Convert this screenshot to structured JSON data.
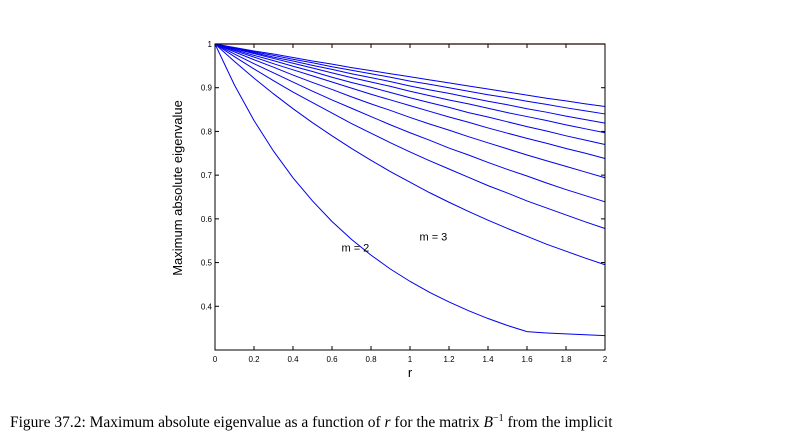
{
  "chart_data": {
    "type": "line",
    "title": "",
    "xlabel": "r",
    "ylabel": "Maximum absolute eigenvalue",
    "xlim": [
      0,
      2
    ],
    "ylim": [
      0.3,
      1
    ],
    "x_ticks": [
      0,
      0.2,
      0.4,
      0.6,
      0.8,
      1,
      1.2,
      1.4,
      1.6,
      1.8,
      2
    ],
    "x_tick_labels": [
      "0",
      "0.2",
      "0.4",
      "0.6",
      "0.8",
      "1",
      "1.2",
      "1.4",
      "1.6",
      "1.8",
      "2"
    ],
    "y_ticks": [
      0.4,
      0.5,
      0.6,
      0.7,
      0.8,
      0.9,
      1
    ],
    "y_tick_labels": [
      "0.4",
      "0.5",
      "0.6",
      "0.7",
      "0.8",
      "0.9",
      "1"
    ],
    "grid": false,
    "x": [
      0,
      0.1,
      0.2,
      0.3,
      0.4,
      0.5,
      0.6,
      0.7,
      0.8,
      0.9,
      1,
      1.1,
      1.2,
      1.3,
      1.4,
      1.5,
      1.6,
      1.7,
      1.8,
      1.9,
      2
    ],
    "series": [
      {
        "name": "",
        "color": "#cc0000",
        "values": [
          1,
          1,
          1,
          1,
          1,
          1,
          1,
          1,
          1,
          1,
          1,
          1,
          1,
          1,
          1,
          1,
          1,
          1,
          1,
          1,
          1
        ]
      },
      {
        "name": "",
        "color": "#0000ee",
        "values": [
          1,
          0.906,
          0.825,
          0.755,
          0.694,
          0.641,
          0.594,
          0.553,
          0.517,
          0.485,
          0.457,
          0.432,
          0.41,
          0.39,
          0.372,
          0.356,
          0.342,
          0.339,
          0.337,
          0.335,
          0.333
        ]
      },
      {
        "name": "",
        "color": "#0000ee",
        "values": [
          1,
          0.96,
          0.922,
          0.886,
          0.852,
          0.82,
          0.79,
          0.761,
          0.734,
          0.708,
          0.684,
          0.66,
          0.638,
          0.617,
          0.597,
          0.578,
          0.56,
          0.542,
          0.526,
          0.51,
          0.495
        ]
      },
      {
        "name": "",
        "color": "#0000ee",
        "values": [
          1,
          0.971,
          0.943,
          0.916,
          0.89,
          0.866,
          0.842,
          0.818,
          0.796,
          0.774,
          0.753,
          0.733,
          0.714,
          0.695,
          0.676,
          0.659,
          0.641,
          0.625,
          0.609,
          0.593,
          0.578
        ]
      },
      {
        "name": "",
        "color": "#0000ee",
        "values": [
          1,
          0.977,
          0.955,
          0.934,
          0.913,
          0.892,
          0.872,
          0.853,
          0.834,
          0.815,
          0.797,
          0.78,
          0.762,
          0.746,
          0.729,
          0.713,
          0.698,
          0.682,
          0.667,
          0.653,
          0.639
        ]
      },
      {
        "name": "",
        "color": "#0000ee",
        "values": [
          1,
          0.982,
          0.964,
          0.947,
          0.929,
          0.912,
          0.896,
          0.879,
          0.863,
          0.848,
          0.832,
          0.817,
          0.803,
          0.788,
          0.774,
          0.76,
          0.746,
          0.733,
          0.72,
          0.707,
          0.694
        ]
      },
      {
        "name": "",
        "color": "#0000ee",
        "values": [
          1,
          0.985,
          0.97,
          0.955,
          0.941,
          0.927,
          0.913,
          0.899,
          0.885,
          0.872,
          0.859,
          0.846,
          0.833,
          0.821,
          0.808,
          0.796,
          0.784,
          0.773,
          0.761,
          0.75,
          0.738
        ]
      },
      {
        "name": "",
        "color": "#0000ee",
        "values": [
          1,
          0.987,
          0.974,
          0.962,
          0.949,
          0.937,
          0.924,
          0.912,
          0.901,
          0.889,
          0.877,
          0.866,
          0.855,
          0.843,
          0.833,
          0.822,
          0.811,
          0.801,
          0.79,
          0.78,
          0.77
        ]
      },
      {
        "name": "",
        "color": "#0000ee",
        "values": [
          1,
          0.989,
          0.978,
          0.967,
          0.956,
          0.945,
          0.934,
          0.923,
          0.913,
          0.903,
          0.892,
          0.882,
          0.872,
          0.863,
          0.853,
          0.843,
          0.834,
          0.825,
          0.815,
          0.806,
          0.797
        ]
      },
      {
        "name": "",
        "color": "#0000ee",
        "values": [
          1,
          0.99,
          0.98,
          0.97,
          0.961,
          0.951,
          0.942,
          0.932,
          0.923,
          0.914,
          0.904,
          0.895,
          0.887,
          0.878,
          0.869,
          0.861,
          0.852,
          0.844,
          0.835,
          0.827,
          0.819
        ]
      },
      {
        "name": "",
        "color": "#0000ee",
        "values": [
          1,
          0.991,
          0.982,
          0.974,
          0.965,
          0.957,
          0.948,
          0.94,
          0.932,
          0.924,
          0.915,
          0.908,
          0.9,
          0.892,
          0.884,
          0.877,
          0.869,
          0.862,
          0.854,
          0.847,
          0.84
        ]
      },
      {
        "name": "",
        "color": "#0000ee",
        "values": [
          1,
          0.992,
          0.984,
          0.977,
          0.969,
          0.961,
          0.954,
          0.946,
          0.939,
          0.932,
          0.925,
          0.918,
          0.911,
          0.904,
          0.897,
          0.89,
          0.883,
          0.876,
          0.87,
          0.863,
          0.857
        ]
      }
    ],
    "annotations": [
      {
        "text": "m = 2",
        "x": 0.72,
        "y": 0.525
      },
      {
        "text": "m = 3",
        "x": 1.12,
        "y": 0.55
      }
    ]
  },
  "caption": {
    "prefix": "Figure 37.2: Maximum absolute eigenvalue as a function of ",
    "r": "r",
    "middle": " for the matrix ",
    "matrix": "B",
    "exponent": "−1",
    "suffix": " from the implicit"
  }
}
